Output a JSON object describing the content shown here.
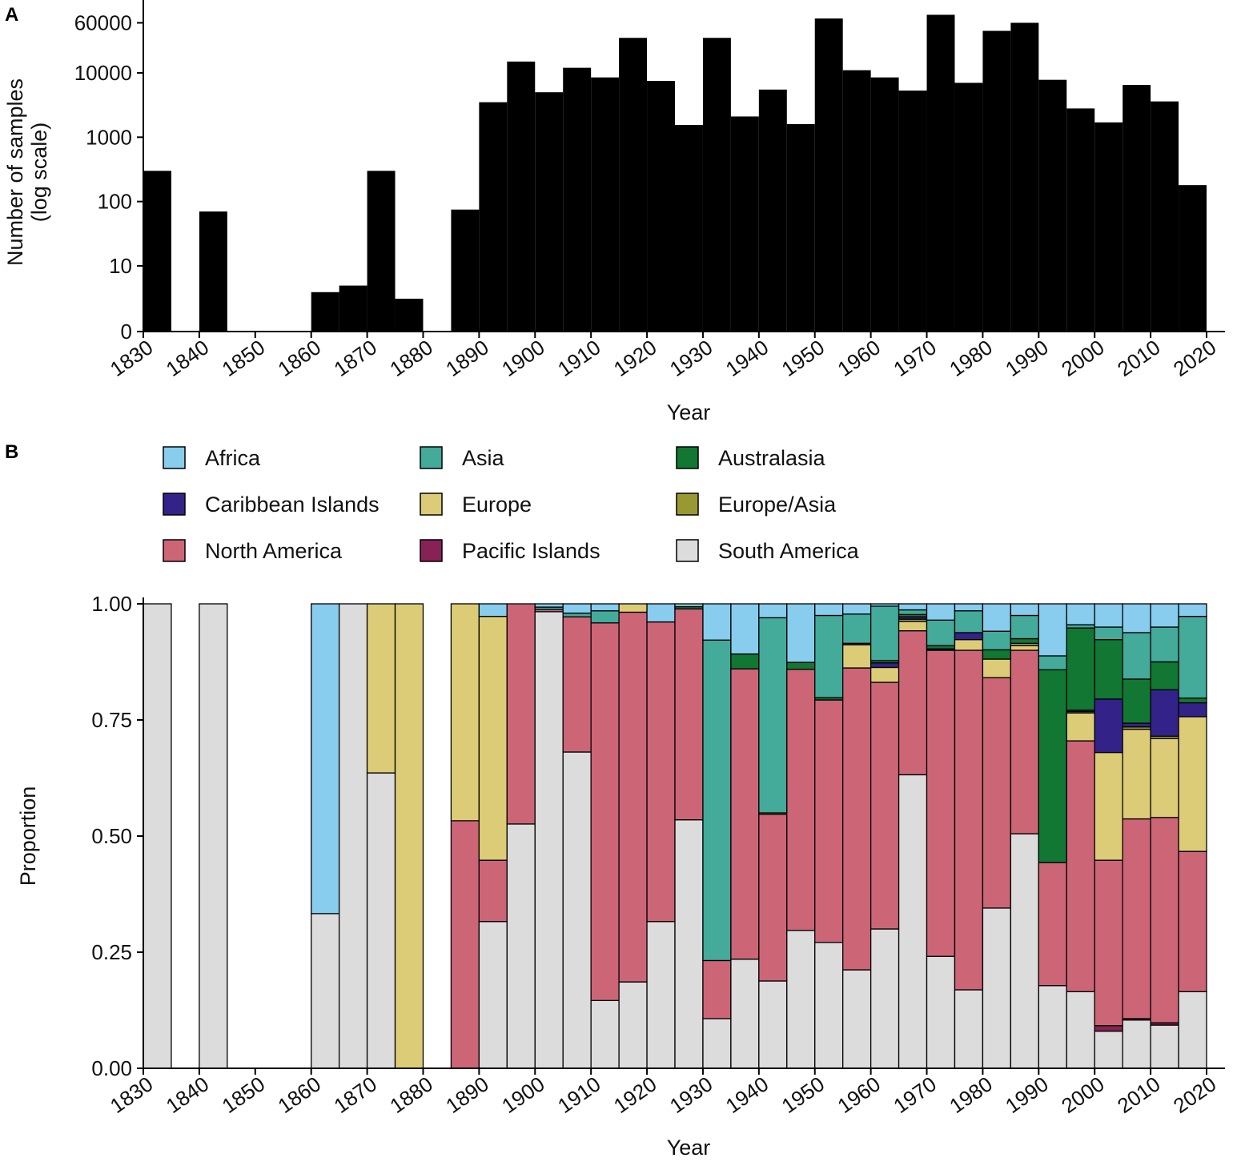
{
  "panels": {
    "a_letter": "A",
    "b_letter": "B"
  },
  "chart_data": [
    {
      "type": "bar",
      "panel": "A",
      "xlabel": "Year",
      "ylabel": "Number of samples",
      "ylabel_sub": "(log scale)",
      "y_scale": "log (with 0)",
      "y_ticks": [
        0,
        10,
        100,
        1000,
        10000,
        60000
      ],
      "y_tick_labels": [
        "0",
        "10",
        "100",
        "1000",
        "10000",
        "60000"
      ],
      "x_ticks": [
        1830,
        1840,
        1850,
        1860,
        1870,
        1880,
        1890,
        1900,
        1910,
        1920,
        1930,
        1940,
        1950,
        1960,
        1970,
        1980,
        1990,
        2000,
        2010,
        2020
      ],
      "x_tick_labels": [
        "1830",
        "1840",
        "1850",
        "1860",
        "1870",
        "1880",
        "1890",
        "1900",
        "1910",
        "1920",
        "1930",
        "1940",
        "1950",
        "1960",
        "1970",
        "1980",
        "1990",
        "2000",
        "2010",
        "2020"
      ],
      "bin_width": 5,
      "bins_start": [
        1830,
        1835,
        1840,
        1845,
        1850,
        1855,
        1860,
        1865,
        1870,
        1875,
        1880,
        1885,
        1890,
        1895,
        1900,
        1905,
        1910,
        1915,
        1920,
        1925,
        1930,
        1935,
        1940,
        1945,
        1950,
        1955,
        1960,
        1965,
        1970,
        1975,
        1980,
        1985,
        1990,
        1995,
        2000,
        2005,
        2010,
        2015
      ],
      "values": [
        300,
        0,
        70,
        0,
        0,
        0,
        6,
        7,
        300,
        5,
        0,
        75,
        3500,
        15000,
        5000,
        12000,
        8500,
        35000,
        7500,
        1550,
        35000,
        2100,
        5500,
        1600,
        70000,
        11000,
        8500,
        5300,
        80000,
        7000,
        45000,
        60000,
        7800,
        2800,
        1700,
        6500,
        3600,
        180
      ],
      "grid": false
    },
    {
      "type": "bar",
      "stacked": true,
      "panel": "B",
      "xlabel": "Year",
      "ylabel": "Proportion",
      "ylim": [
        0,
        1
      ],
      "y_ticks": [
        0,
        0.25,
        0.5,
        0.75,
        1.0
      ],
      "y_tick_labels": [
        "0.00",
        "0.25",
        "0.50",
        "0.75",
        "1.00"
      ],
      "x_ticks": [
        1830,
        1840,
        1850,
        1860,
        1870,
        1880,
        1890,
        1900,
        1910,
        1920,
        1930,
        1940,
        1950,
        1960,
        1970,
        1980,
        1990,
        2000,
        2010,
        2020
      ],
      "x_tick_labels": [
        "1830",
        "1840",
        "1850",
        "1860",
        "1870",
        "1880",
        "1890",
        "1900",
        "1910",
        "1920",
        "1930",
        "1940",
        "1950",
        "1960",
        "1970",
        "1980",
        "1990",
        "2000",
        "2010",
        "2020"
      ],
      "bin_width": 5,
      "legend_placement": "top",
      "categories": [
        1830,
        1835,
        1840,
        1845,
        1850,
        1855,
        1860,
        1865,
        1870,
        1875,
        1880,
        1885,
        1890,
        1895,
        1900,
        1905,
        1910,
        1915,
        1920,
        1925,
        1930,
        1935,
        1940,
        1945,
        1950,
        1955,
        1960,
        1965,
        1970,
        1975,
        1980,
        1985,
        1990,
        1995,
        2000,
        2005,
        2010,
        2015
      ],
      "series": [
        {
          "name": "South America",
          "color": "#dcdcdc",
          "values": [
            1,
            0,
            1,
            0,
            0,
            0,
            0.333,
            1,
            0.636,
            0,
            0,
            0,
            0.316,
            0.526,
            0.983,
            0.681,
            0.146,
            0.186,
            0.316,
            0.535,
            0.107,
            0.235,
            0.188,
            0.297,
            0.271,
            0.212,
            0.3,
            0.632,
            0.241,
            0.169,
            0.345,
            0.505,
            0.178,
            0.165,
            0.08,
            0.104,
            0.093,
            0.165
          ]
        },
        {
          "name": "Pacific Islands",
          "color": "#882155",
          "values": [
            0,
            0,
            0,
            0,
            0,
            0,
            0,
            0,
            0,
            0,
            0,
            0,
            0,
            0,
            0,
            0,
            0,
            0,
            0,
            0,
            0,
            0,
            0,
            0,
            0,
            0,
            0,
            0,
            0,
            0,
            0,
            0,
            0,
            0,
            0.012,
            0.003,
            0.005,
            0
          ]
        },
        {
          "name": "North America",
          "color": "#cc6677",
          "values": [
            0,
            0,
            0,
            0,
            0,
            0,
            0,
            0,
            0,
            0,
            0,
            0.533,
            0.132,
            0.474,
            0.005,
            0.291,
            0.813,
            0.796,
            0.645,
            0.454,
            0.125,
            0.625,
            0.359,
            0.562,
            0.522,
            0.65,
            0.531,
            0.31,
            0.659,
            0.731,
            0.496,
            0.395,
            0.265,
            0.54,
            0.356,
            0.43,
            0.442,
            0.302
          ]
        },
        {
          "name": "Europe",
          "color": "#ddcc77",
          "values": [
            0,
            0,
            0,
            0,
            0,
            0,
            0,
            0,
            0.364,
            1,
            0,
            0.467,
            0.525,
            0,
            0,
            0,
            0,
            0.018,
            0,
            0,
            0,
            0,
            0,
            0,
            0,
            0.05,
            0.032,
            0.02,
            0,
            0.023,
            0.04,
            0.01,
            0,
            0.06,
            0.232,
            0.193,
            0.17,
            0.29
          ]
        },
        {
          "name": "Europe/Asia",
          "color": "#999933",
          "values": [
            0,
            0,
            0,
            0,
            0,
            0,
            0,
            0,
            0,
            0,
            0,
            0,
            0,
            0,
            0,
            0,
            0,
            0,
            0,
            0,
            0,
            0,
            0.003,
            0,
            0,
            0,
            0,
            0.005,
            0,
            0,
            0,
            0.005,
            0,
            0.003,
            0,
            0.005,
            0.005,
            0
          ]
        },
        {
          "name": "Caribbean Islands",
          "color": "#332288",
          "values": [
            0,
            0,
            0,
            0,
            0,
            0,
            0,
            0,
            0,
            0,
            0,
            0,
            0,
            0,
            0,
            0,
            0,
            0,
            0,
            0,
            0,
            0,
            0,
            0,
            0,
            0.003,
            0.01,
            0.005,
            0.003,
            0.015,
            0,
            0,
            0,
            0.003,
            0.115,
            0.008,
            0.1,
            0.03
          ]
        },
        {
          "name": "Australasia",
          "color": "#117733",
          "values": [
            0,
            0,
            0,
            0,
            0,
            0,
            0,
            0,
            0,
            0,
            0,
            0,
            0,
            0,
            0,
            0,
            0,
            0,
            0,
            0.005,
            0,
            0.032,
            0,
            0.015,
            0.005,
            0,
            0.005,
            0.005,
            0.007,
            0,
            0.02,
            0.01,
            0.415,
            0.177,
            0.128,
            0.095,
            0.06,
            0.01
          ]
        },
        {
          "name": "Asia",
          "color": "#44aa99",
          "values": [
            0,
            0,
            0,
            0,
            0,
            0,
            0,
            0,
            0,
            0,
            0,
            0,
            0,
            0,
            0.005,
            0.008,
            0.026,
            0,
            0,
            0,
            0.69,
            0,
            0.42,
            0,
            0.177,
            0.063,
            0.117,
            0.01,
            0.055,
            0.047,
            0.04,
            0.05,
            0.03,
            0.007,
            0.027,
            0.1,
            0.075,
            0.176
          ]
        },
        {
          "name": "Africa",
          "color": "#88ccee",
          "values": [
            0,
            0,
            0,
            0,
            0,
            0,
            0.667,
            0,
            0,
            0,
            0,
            0,
            0.027,
            0,
            0.007,
            0.02,
            0.015,
            0,
            0.039,
            0.006,
            0.078,
            0.108,
            0.03,
            0.126,
            0.025,
            0.022,
            0.005,
            0.013,
            0.035,
            0.015,
            0.059,
            0.025,
            0.112,
            0.045,
            0.05,
            0.062,
            0.05,
            0.027
          ]
        }
      ],
      "legend_order": [
        "Africa",
        "Asia",
        "Australasia",
        "Caribbean Islands",
        "Europe",
        "Europe/Asia",
        "North America",
        "Pacific Islands",
        "South America"
      ]
    }
  ]
}
